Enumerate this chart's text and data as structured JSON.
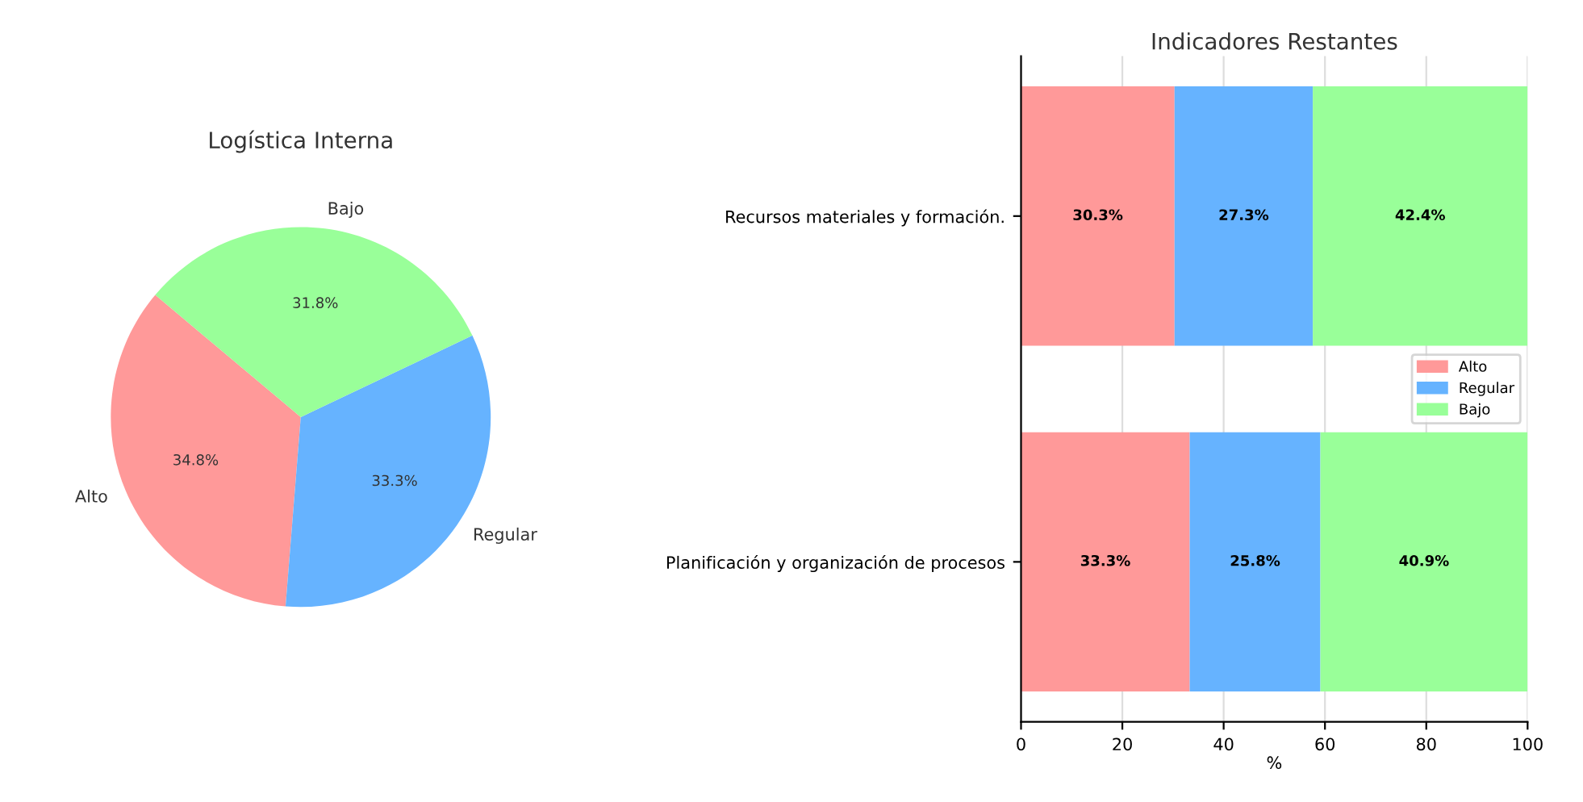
{
  "chart_data": [
    {
      "type": "pie",
      "title": "Logística Interna",
      "categories": [
        "Alto",
        "Regular",
        "Bajo"
      ],
      "values": [
        34.8,
        33.3,
        31.8
      ],
      "colors": [
        "#ff9999",
        "#66b3ff",
        "#99ff99"
      ],
      "value_labels": [
        "34.8%",
        "33.3%",
        "31.8%"
      ]
    },
    {
      "type": "bar",
      "orientation": "horizontal",
      "stacked": true,
      "title": "Indicadores Restantes",
      "xlabel": "%",
      "categories": [
        "Recursos materiales y formación.",
        "Planificación y organización de procesos"
      ],
      "series": [
        {
          "name": "Alto",
          "color": "#ff9999",
          "values": [
            30.3,
            33.3
          ],
          "value_labels": [
            "30.3%",
            "33.3%"
          ]
        },
        {
          "name": "Regular",
          "color": "#66b3ff",
          "values": [
            27.3,
            25.8
          ],
          "value_labels": [
            "27.3%",
            "25.8%"
          ]
        },
        {
          "name": "Bajo",
          "color": "#99ff99",
          "values": [
            42.4,
            40.9
          ],
          "value_labels": [
            "42.4%",
            "40.9%"
          ]
        }
      ],
      "xlim": [
        0,
        100
      ],
      "xticks": [
        0,
        20,
        40,
        60,
        80,
        100
      ],
      "grid": "x",
      "legend": "right"
    }
  ]
}
